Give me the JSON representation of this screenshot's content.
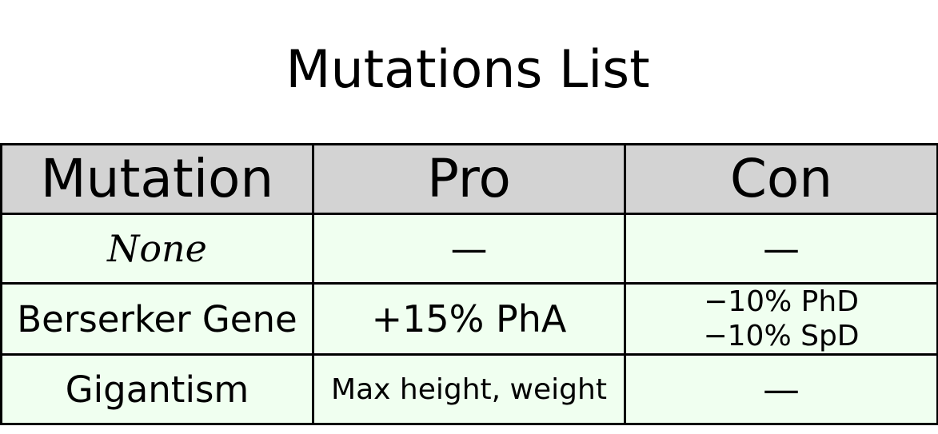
{
  "title": "Mutations List",
  "table": {
    "headers": [
      "Mutation",
      "Pro",
      "Con"
    ],
    "rows": [
      {
        "mutation": "None",
        "pro": "—",
        "con_lines": [
          "—"
        ]
      },
      {
        "mutation": "Berserker Gene",
        "pro": "+15% PhA",
        "con_lines": [
          "−10% PhD",
          "−10% SpD"
        ]
      },
      {
        "mutation": "Gigantism",
        "pro": "Max height, weight",
        "con_lines": [
          "—"
        ]
      }
    ]
  },
  "colors": {
    "header_bg": "#d3d3d3",
    "row_bg": "#f0fff0",
    "border": "#000000"
  }
}
